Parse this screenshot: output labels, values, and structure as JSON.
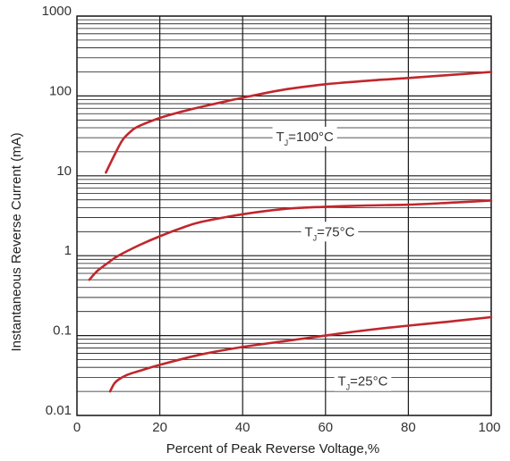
{
  "chart_data": {
    "type": "line",
    "xlabel": "Percent of Peak Reverse Voltage,%",
    "ylabel": "Instantaneous Reverse Current (mA)",
    "xscale": "linear",
    "yscale": "log",
    "xlim": [
      0,
      100
    ],
    "ylim": [
      0.01,
      1000
    ],
    "x_ticks": [
      "0",
      "20",
      "40",
      "60",
      "80",
      "100"
    ],
    "y_ticks": [
      "0.01",
      "0.1",
      "1",
      "10",
      "100",
      "1000"
    ],
    "grid": true,
    "line_color": "#c0272d",
    "grid_color": "#1a1a1a",
    "series": [
      {
        "name_main": "T",
        "name_sub": "J",
        "name_rest": "=100°C",
        "x": [
          7,
          9,
          11,
          13,
          15,
          20,
          25,
          30,
          40,
          50,
          60,
          70,
          80,
          90,
          100
        ],
        "y": [
          11,
          18,
          28,
          36,
          42,
          53,
          63,
          73,
          95,
          120,
          140,
          155,
          168,
          183,
          200
        ]
      },
      {
        "name_main": "T",
        "name_sub": "J",
        "name_rest": "=75°C",
        "x": [
          3,
          5,
          8,
          10,
          15,
          20,
          25,
          30,
          40,
          50,
          60,
          70,
          80,
          90,
          100
        ],
        "y": [
          0.5,
          0.65,
          0.85,
          1.0,
          1.35,
          1.75,
          2.2,
          2.65,
          3.3,
          3.85,
          4.1,
          4.25,
          4.35,
          4.6,
          4.9
        ]
      },
      {
        "name_main": "T",
        "name_sub": "J",
        "name_rest": "=25°C",
        "x": [
          8,
          9,
          10,
          12,
          15,
          20,
          30,
          40,
          50,
          60,
          70,
          80,
          90,
          100
        ],
        "y": [
          0.02,
          0.025,
          0.028,
          0.032,
          0.036,
          0.043,
          0.058,
          0.072,
          0.085,
          0.1,
          0.117,
          0.133,
          0.15,
          0.17
        ]
      }
    ]
  }
}
